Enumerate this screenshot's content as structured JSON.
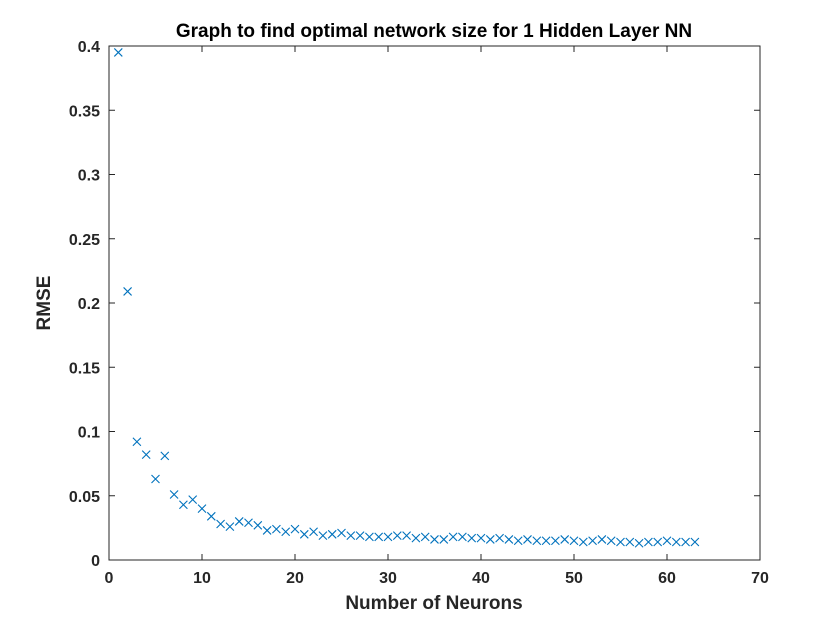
{
  "chart_data": {
    "type": "scatter",
    "title": "Graph to find optimal network size for 1 Hidden Layer NN",
    "xlabel": "Number of Neurons",
    "ylabel": "RMSE",
    "xlim": [
      0,
      70
    ],
    "ylim": [
      0,
      0.4
    ],
    "xticks": [
      0,
      10,
      20,
      30,
      40,
      50,
      60,
      70
    ],
    "xtick_labels": [
      "0",
      "10",
      "20",
      "30",
      "40",
      "50",
      "60",
      "70"
    ],
    "yticks": [
      0,
      0.05,
      0.1,
      0.15,
      0.2,
      0.25,
      0.3,
      0.35,
      0.4
    ],
    "ytick_labels": [
      "0",
      "0.05",
      "0.1",
      "0.15",
      "0.2",
      "0.25",
      "0.3",
      "0.35",
      "0.4"
    ],
    "grid": false,
    "marker": "x",
    "color": "#0072BD",
    "series": [
      {
        "x": [
          1,
          2,
          3,
          4,
          5,
          6,
          7,
          8,
          9,
          10,
          11,
          12,
          13,
          14,
          15,
          16,
          17,
          18,
          19,
          20,
          21,
          22,
          23,
          24,
          25,
          26,
          27,
          28,
          29,
          30,
          31,
          32,
          33,
          34,
          35,
          36,
          37,
          38,
          39,
          40,
          41,
          42,
          43,
          44,
          45,
          46,
          47,
          48,
          49,
          50,
          51,
          52,
          53,
          54,
          55,
          56,
          57,
          58,
          59,
          60,
          61,
          62,
          63
        ],
        "y": [
          0.395,
          0.209,
          0.092,
          0.082,
          0.063,
          0.081,
          0.051,
          0.043,
          0.047,
          0.04,
          0.034,
          0.028,
          0.026,
          0.03,
          0.029,
          0.027,
          0.023,
          0.024,
          0.022,
          0.024,
          0.02,
          0.022,
          0.019,
          0.02,
          0.021,
          0.019,
          0.019,
          0.018,
          0.018,
          0.018,
          0.019,
          0.019,
          0.017,
          0.018,
          0.016,
          0.016,
          0.018,
          0.018,
          0.017,
          0.017,
          0.016,
          0.017,
          0.016,
          0.015,
          0.016,
          0.015,
          0.015,
          0.015,
          0.016,
          0.015,
          0.014,
          0.015,
          0.016,
          0.015,
          0.014,
          0.014,
          0.013,
          0.014,
          0.014,
          0.015,
          0.014,
          0.014,
          0.014
        ]
      }
    ]
  }
}
